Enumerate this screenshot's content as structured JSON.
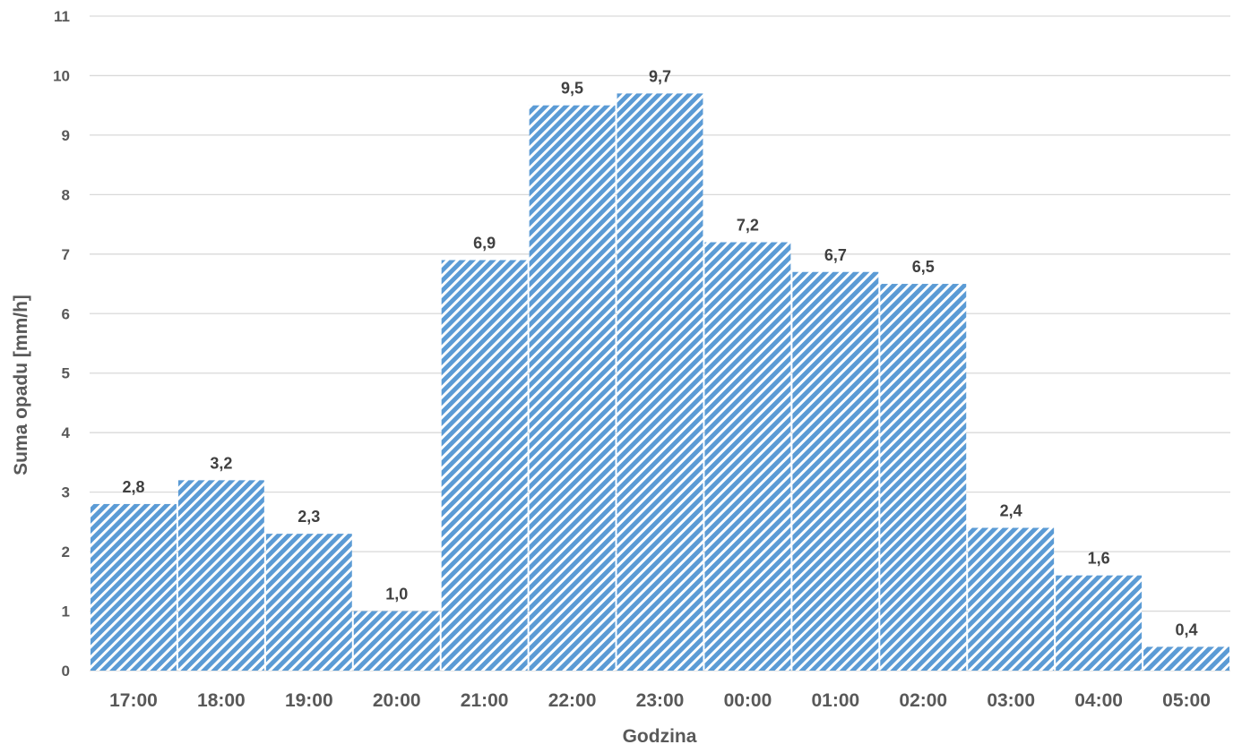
{
  "chart_data": {
    "type": "bar",
    "title": "",
    "xlabel": "Godzina",
    "ylabel": "Suma opadu [mm/h]",
    "categories": [
      "17:00",
      "18:00",
      "19:00",
      "20:00",
      "21:00",
      "22:00",
      "23:00",
      "00:00",
      "01:00",
      "02:00",
      "03:00",
      "04:00",
      "05:00"
    ],
    "values": [
      2.8,
      3.2,
      2.3,
      1.0,
      6.9,
      9.5,
      9.7,
      7.2,
      6.7,
      6.5,
      2.4,
      1.6,
      0.4
    ],
    "data_labels": [
      "2,8",
      "3,2",
      "2,3",
      "1,0",
      "6,9",
      "9,5",
      "9,7",
      "7,2",
      "6,7",
      "6,5",
      "2,4",
      "1,6",
      "0,4"
    ],
    "y_ticks": [
      "0",
      "1",
      "2",
      "3",
      "4",
      "5",
      "6",
      "7",
      "8",
      "9",
      "10",
      "11"
    ],
    "ylim": [
      0,
      11
    ],
    "grid": true,
    "legend": "none",
    "colors": {
      "bar_stripe": "#5b9bd5",
      "bar_background": "#ffffff",
      "gridline": "#d9d9d9",
      "axis_text": "#595959",
      "data_label_text": "#404040"
    }
  }
}
